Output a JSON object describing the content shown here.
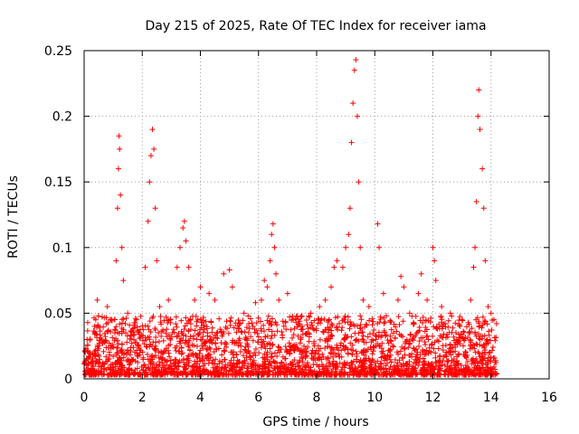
{
  "chart_data": {
    "type": "scatter",
    "title": "Day 215 of 2025, Rate Of TEC Index for receiver iama",
    "xlabel": "GPS time / hours",
    "ylabel": "ROTI / TECUs",
    "xlim": [
      0,
      16
    ],
    "ylim": [
      0,
      0.25
    ],
    "xticks": [
      0,
      2,
      4,
      6,
      8,
      10,
      12,
      14,
      16
    ],
    "yticks": [
      0,
      0.05,
      0.1,
      0.15,
      0.2,
      0.25
    ],
    "xtick_labels": [
      "0",
      "2",
      "4",
      "6",
      "8",
      "10",
      "12",
      "14",
      "16"
    ],
    "ytick_labels": [
      "0",
      "0.05",
      "0.1",
      "0.15",
      "0.2",
      "0.25"
    ],
    "grid": true,
    "marker": "+",
    "color": "#ff0000",
    "data_extent_hours": [
      0,
      14.2
    ],
    "series": [
      {
        "name": "ROTI",
        "points": [
          [
            0.1,
            0.03
          ],
          [
            0.4,
            0.045
          ],
          [
            0.45,
            0.06
          ],
          [
            0.8,
            0.055
          ],
          [
            0.9,
            0.045
          ],
          [
            1.1,
            0.09
          ],
          [
            1.15,
            0.13
          ],
          [
            1.18,
            0.16
          ],
          [
            1.2,
            0.185
          ],
          [
            1.22,
            0.175
          ],
          [
            1.25,
            0.14
          ],
          [
            1.3,
            0.1
          ],
          [
            1.35,
            0.075
          ],
          [
            1.5,
            0.05
          ],
          [
            1.8,
            0.045
          ],
          [
            2.1,
            0.085
          ],
          [
            2.2,
            0.12
          ],
          [
            2.25,
            0.15
          ],
          [
            2.3,
            0.17
          ],
          [
            2.35,
            0.19
          ],
          [
            2.4,
            0.175
          ],
          [
            2.45,
            0.13
          ],
          [
            2.5,
            0.09
          ],
          [
            2.6,
            0.055
          ],
          [
            2.9,
            0.06
          ],
          [
            3.2,
            0.085
          ],
          [
            3.3,
            0.1
          ],
          [
            3.4,
            0.115
          ],
          [
            3.45,
            0.12
          ],
          [
            3.5,
            0.105
          ],
          [
            3.6,
            0.085
          ],
          [
            3.8,
            0.06
          ],
          [
            4.0,
            0.07
          ],
          [
            4.3,
            0.065
          ],
          [
            4.5,
            0.06
          ],
          [
            4.8,
            0.08
          ],
          [
            5.0,
            0.083
          ],
          [
            5.1,
            0.07
          ],
          [
            5.5,
            0.05
          ],
          [
            5.9,
            0.058
          ],
          [
            6.1,
            0.06
          ],
          [
            6.2,
            0.075
          ],
          [
            6.3,
            0.07
          ],
          [
            6.4,
            0.09
          ],
          [
            6.45,
            0.11
          ],
          [
            6.5,
            0.118
          ],
          [
            6.55,
            0.1
          ],
          [
            6.6,
            0.08
          ],
          [
            6.7,
            0.06
          ],
          [
            7.0,
            0.065
          ],
          [
            7.5,
            0.04
          ],
          [
            7.8,
            0.05
          ],
          [
            8.1,
            0.055
          ],
          [
            8.3,
            0.06
          ],
          [
            8.5,
            0.07
          ],
          [
            8.6,
            0.085
          ],
          [
            8.7,
            0.09
          ],
          [
            8.9,
            0.085
          ],
          [
            9.0,
            0.1
          ],
          [
            9.1,
            0.11
          ],
          [
            9.15,
            0.13
          ],
          [
            9.2,
            0.18
          ],
          [
            9.25,
            0.21
          ],
          [
            9.3,
            0.235
          ],
          [
            9.35,
            0.243
          ],
          [
            9.4,
            0.2
          ],
          [
            9.45,
            0.15
          ],
          [
            9.5,
            0.1
          ],
          [
            9.6,
            0.06
          ],
          [
            9.8,
            0.055
          ],
          [
            10.1,
            0.118
          ],
          [
            10.15,
            0.1
          ],
          [
            10.3,
            0.065
          ],
          [
            10.8,
            0.06
          ],
          [
            10.9,
            0.078
          ],
          [
            11.0,
            0.07
          ],
          [
            11.2,
            0.05
          ],
          [
            11.5,
            0.065
          ],
          [
            11.6,
            0.08
          ],
          [
            11.8,
            0.06
          ],
          [
            12.0,
            0.1
          ],
          [
            12.05,
            0.09
          ],
          [
            12.1,
            0.075
          ],
          [
            12.3,
            0.055
          ],
          [
            12.6,
            0.05
          ],
          [
            13.0,
            0.045
          ],
          [
            13.3,
            0.06
          ],
          [
            13.4,
            0.085
          ],
          [
            13.45,
            0.1
          ],
          [
            13.5,
            0.135
          ],
          [
            13.55,
            0.2
          ],
          [
            13.58,
            0.22
          ],
          [
            13.62,
            0.19
          ],
          [
            13.7,
            0.16
          ],
          [
            13.75,
            0.13
          ],
          [
            13.8,
            0.09
          ],
          [
            13.9,
            0.055
          ],
          [
            14.0,
            0.05
          ],
          [
            14.1,
            0.045
          ]
        ]
      }
    ]
  }
}
